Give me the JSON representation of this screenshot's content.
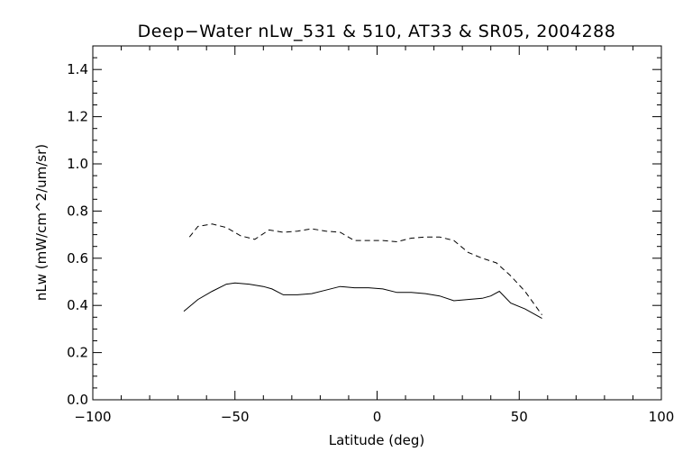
{
  "chart_data": {
    "type": "line",
    "title": "Deep−Water nLw_531 & 510, AT33 & SR05, 2004288",
    "xlabel": "Latitude (deg)",
    "ylabel": "nLw (mW/cm^2/um/sr)",
    "xlim": [
      -100,
      100
    ],
    "ylim": [
      0.0,
      1.5
    ],
    "x_ticks": [
      -100,
      -50,
      0,
      50,
      100
    ],
    "x_tick_labels": [
      "−100",
      "−50",
      "0",
      "50",
      "100"
    ],
    "y_ticks": [
      0.0,
      0.2,
      0.4,
      0.6,
      0.8,
      1.0,
      1.2,
      1.4
    ],
    "y_tick_labels": [
      "0.0",
      "0.2",
      "0.4",
      "0.6",
      "0.8",
      "1.0",
      "1.2",
      "1.4"
    ],
    "grid": false,
    "series": [
      {
        "style": "solid",
        "color": "#000000",
        "x": [
          -68,
          -63,
          -58,
          -53,
          -50,
          -45,
          -40,
          -37,
          -33,
          -28,
          -23,
          -18,
          -13,
          -8,
          -3,
          2,
          7,
          12,
          17,
          22,
          27,
          32,
          37,
          40,
          43,
          47,
          52,
          58
        ],
        "y": [
          0.375,
          0.425,
          0.46,
          0.49,
          0.495,
          0.49,
          0.48,
          0.47,
          0.445,
          0.445,
          0.45,
          0.465,
          0.48,
          0.475,
          0.475,
          0.47,
          0.455,
          0.455,
          0.45,
          0.44,
          0.42,
          0.425,
          0.43,
          0.44,
          0.46,
          0.41,
          0.385,
          0.345
        ]
      },
      {
        "style": "dashed",
        "color": "#000000",
        "x": [
          -66,
          -63,
          -58,
          -53,
          -48,
          -43,
          -38,
          -33,
          -28,
          -23,
          -18,
          -13,
          -8,
          -3,
          2,
          7,
          12,
          17,
          22,
          27,
          32,
          37,
          42,
          47,
          52,
          58
        ],
        "y": [
          0.69,
          0.735,
          0.745,
          0.73,
          0.695,
          0.68,
          0.72,
          0.71,
          0.715,
          0.725,
          0.715,
          0.71,
          0.675,
          0.675,
          0.675,
          0.67,
          0.685,
          0.69,
          0.69,
          0.675,
          0.625,
          0.6,
          0.58,
          0.525,
          0.46,
          0.36
        ]
      }
    ]
  }
}
